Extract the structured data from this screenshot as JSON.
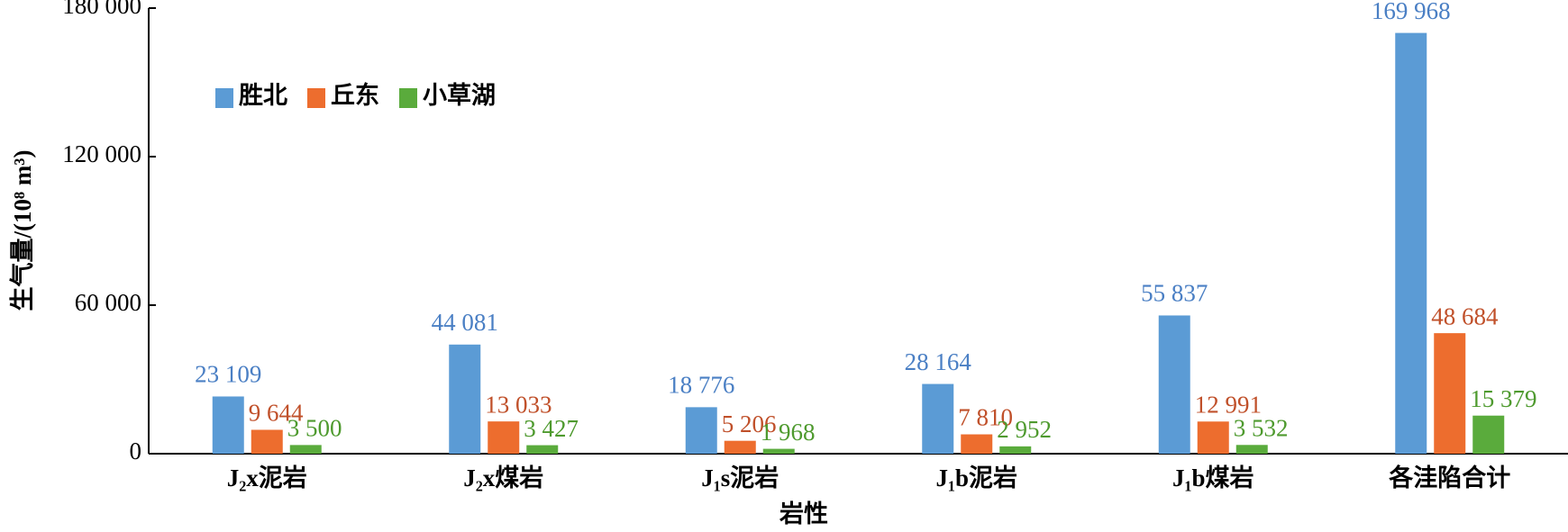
{
  "chart_data": {
    "type": "bar",
    "x_label": "岩性",
    "y_label": "生气量/(10⁸ m³)",
    "categories": [
      "J₂x泥岩",
      "J₂x煤岩",
      "J₁s泥岩",
      "J₁b泥岩",
      "J₁b煤岩",
      "各洼陷合计"
    ],
    "series": [
      {
        "name": "胜北",
        "color": "#5b9bd5",
        "label_color": "#4a7fc4",
        "values": [
          23109,
          44081,
          18776,
          28164,
          55837,
          169968
        ],
        "value_labels": [
          "23 109",
          "44 081",
          "18 776",
          "28 164",
          "55 837",
          "169 968"
        ]
      },
      {
        "name": "丘东",
        "color": "#ed6d2e",
        "label_color": "#c0502a",
        "values": [
          9644,
          13033,
          5206,
          7810,
          12991,
          48684
        ],
        "value_labels": [
          "9 644",
          "13 033",
          "5 206",
          "7 810",
          "12 991",
          "48 684"
        ]
      },
      {
        "name": "小草湖",
        "color": "#5aab3c",
        "label_color": "#4e9a2e",
        "values": [
          3500,
          3427,
          1968,
          2952,
          3532,
          15379
        ],
        "value_labels": [
          "3 500",
          "3 427",
          "1 968",
          "2 952",
          "3 532",
          "15 379"
        ]
      }
    ],
    "ylim": [
      0,
      180000
    ],
    "yticks": [
      0,
      {
        "value": 60000,
        "label": "60 000"
      },
      {
        "value": 120000,
        "label": "120 000"
      },
      {
        "value": 180000,
        "label": "180 000"
      }
    ],
    "legend": "upper-left"
  }
}
